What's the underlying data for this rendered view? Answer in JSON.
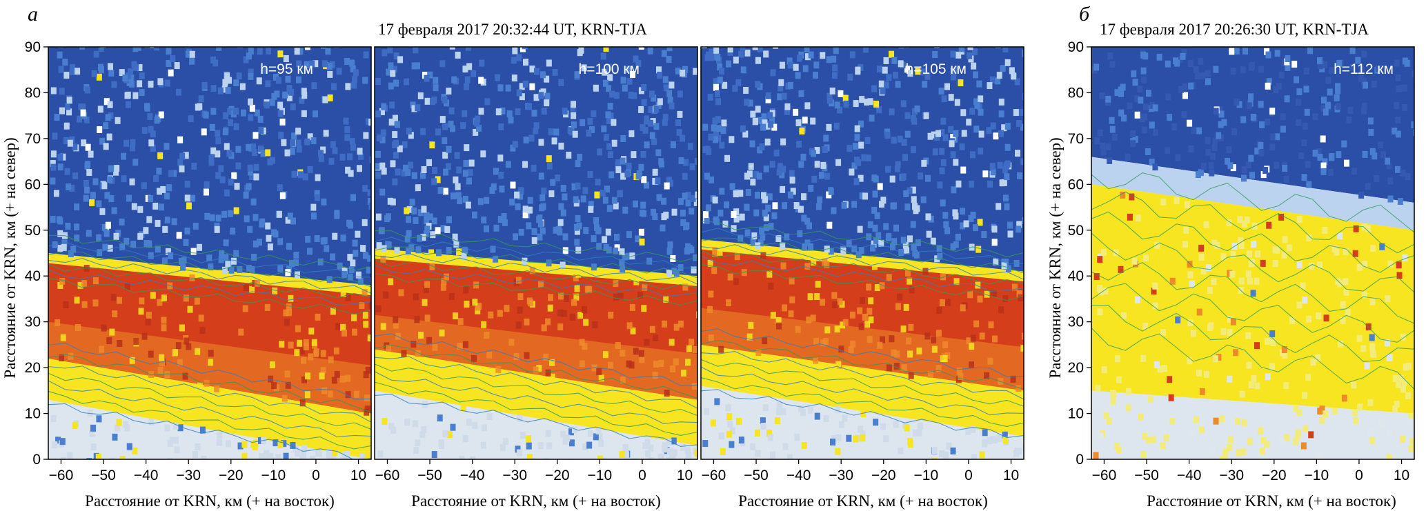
{
  "figure": {
    "label_a": "а",
    "label_b": "б",
    "title_a": "17 февраля 2017  20:32:44 UT, KRN-TJA",
    "title_b": "17 февраля 2017  20:26:30 UT, KRN-TJA"
  },
  "colors": {
    "deep_blue": "#2b4ea6",
    "mid_blue": "#4a7fd0",
    "light_blue": "#bcd3ef",
    "pale": "#dde6ef",
    "yellow": "#f6e520",
    "orange": "#ee8a2a",
    "red": "#d43e1a",
    "contour_green": "#2f9a5a",
    "contour_blue": "#2e7fbf"
  },
  "chart_data": [
    {
      "type": "heatmap",
      "panel": "а",
      "annotation": "h=95 км",
      "xlabel": "Расстояние от KRN, км (+ на восток)",
      "ylabel": "Расстояние от KRN, км (+ на север)",
      "xlim": [
        -63,
        13
      ],
      "ylim": [
        0,
        90
      ],
      "xticks": [
        -60,
        -50,
        -40,
        -30,
        -20,
        -10,
        0,
        10
      ],
      "yticks": [
        0,
        10,
        20,
        30,
        40,
        50,
        60,
        70,
        80,
        90
      ],
      "band_north_edge_km": {
        "x": [
          -63,
          13
        ],
        "y": [
          44,
          37
        ]
      },
      "band_south_edge_km": {
        "x": [
          -63,
          13
        ],
        "y": [
          22,
          10
        ]
      }
    },
    {
      "type": "heatmap",
      "panel": "а",
      "annotation": "h=100 км",
      "xlabel": "Расстояние от KRN, км (+ на восток)",
      "xlim": [
        -63,
        13
      ],
      "ylim": [
        0,
        90
      ],
      "xticks": [
        -60,
        -50,
        -40,
        -30,
        -20,
        -10,
        0,
        10
      ],
      "band_north_edge_km": {
        "x": [
          -63,
          13
        ],
        "y": [
          45,
          39
        ]
      },
      "band_south_edge_km": {
        "x": [
          -63,
          13
        ],
        "y": [
          24,
          13
        ]
      }
    },
    {
      "type": "heatmap",
      "panel": "а",
      "annotation": "h=105 км",
      "xlabel": "Расстояние от KRN, км (+ на восток)",
      "xlim": [
        -63,
        13
      ],
      "ylim": [
        0,
        90
      ],
      "xticks": [
        -60,
        -50,
        -40,
        -30,
        -20,
        -10,
        0,
        10
      ],
      "band_north_edge_km": {
        "x": [
          -63,
          13
        ],
        "y": [
          47,
          40
        ]
      },
      "band_south_edge_km": {
        "x": [
          -63,
          13
        ],
        "y": [
          25,
          15
        ]
      }
    },
    {
      "type": "heatmap",
      "panel": "б",
      "annotation": "h=112 км",
      "xlabel": "Расстояние от KRN, км (+ на восток)",
      "ylabel": "Расстояние от KRN, км (+ на север)",
      "xlim": [
        -63,
        13
      ],
      "ylim": [
        0,
        90
      ],
      "xticks": [
        -60,
        -50,
        -40,
        -30,
        -20,
        -10,
        0,
        10
      ],
      "yticks": [
        0,
        10,
        20,
        30,
        40,
        50,
        60,
        70,
        80,
        90
      ],
      "band_north_edge_km": {
        "x": [
          -63,
          13
        ],
        "y": [
          66,
          56
        ]
      },
      "band_south_edge_km": {
        "x": [
          -63,
          13
        ],
        "y": [
          15,
          10
        ]
      }
    }
  ]
}
